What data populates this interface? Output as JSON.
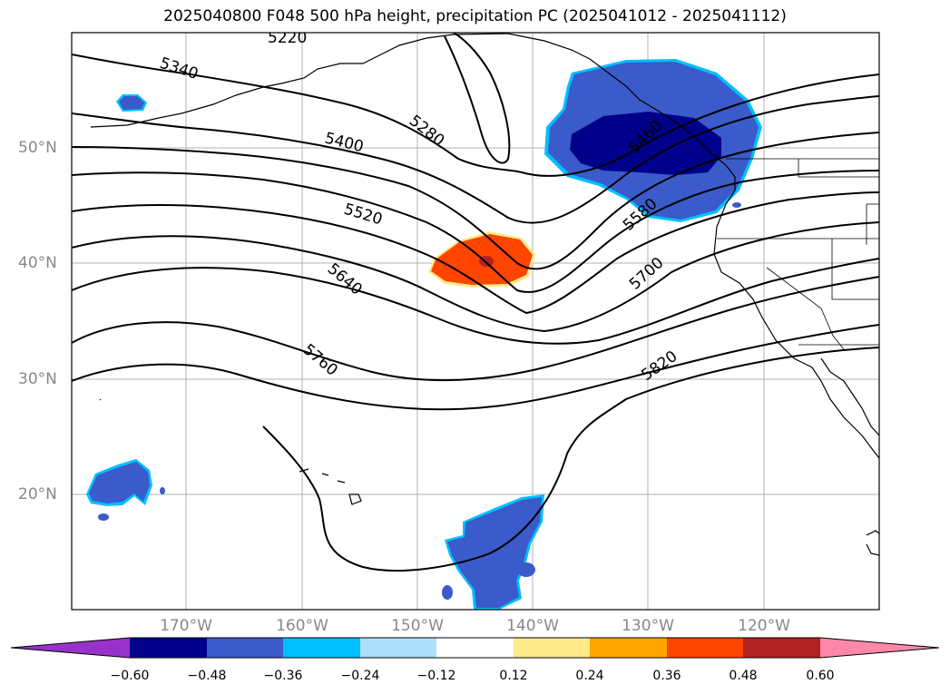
{
  "title": "2025040800 F048 500 hPa height, precipitation PC (2025041012 - 2025041112)",
  "lat_labels": [
    "50°N",
    "40°N",
    "30°N",
    "20°N"
  ],
  "lon_labels": [
    "170°W",
    "160°W",
    "150°W",
    "140°W",
    "130°W",
    "120°W"
  ],
  "contour_labels": [
    "5220",
    "5340",
    "5280",
    "5400",
    "5460",
    "5520",
    "5580",
    "5640",
    "5700",
    "5760",
    "5820"
  ],
  "colorbar": {
    "ticks": [
      "−0.60",
      "−0.48",
      "−0.36",
      "−0.24",
      "−0.12",
      "0.12",
      "0.24",
      "0.36",
      "0.48",
      "0.60"
    ],
    "colors": [
      "#9932CC",
      "#00008B",
      "#3A5BC9",
      "#00BFFF",
      "#ADDFF8",
      "#FFFFFF",
      "#FFEA8A",
      "#FFA500",
      "#FF4500",
      "#B22222",
      "#FF88AA"
    ]
  },
  "colors": {
    "neg_dark": "#00008B",
    "neg_mid": "#3A5BC9",
    "neg_light": "#00BFFF",
    "pos_orange": "#FF4500",
    "pos_red": "#B22222"
  }
}
